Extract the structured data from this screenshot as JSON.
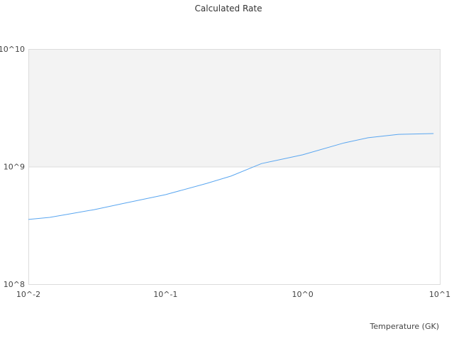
{
  "chart_data": {
    "type": "line",
    "title": "Calculated Rate",
    "xlabel": "Temperature (GK)",
    "ylabel": "",
    "xscale": "log",
    "yscale": "log",
    "xlim": [
      0.01,
      10
    ],
    "ylim": [
      100000000,
      10000000000
    ],
    "x_tick_labels": [
      "10^-2",
      "10^-1",
      "10^0",
      "10^1"
    ],
    "y_tick_labels": [
      "10^8",
      "10^9",
      "10^10"
    ],
    "grid": false,
    "shaded_band": {
      "from": 1000000000,
      "to": 10000000000,
      "color": "#f3f3f3"
    },
    "series": [
      {
        "color": "#5aa6f0",
        "x": [
          0.01,
          0.0143,
          0.02,
          0.03,
          0.05,
          0.1,
          0.2,
          0.3,
          0.5,
          1,
          2,
          3,
          5,
          9
        ],
        "y": [
          355000000,
          370000000,
          396000000,
          430000000,
          488000000,
          577000000,
          720000000,
          830000000,
          1060000000,
          1260000000,
          1590000000,
          1760000000,
          1880000000,
          1910000000
        ]
      }
    ]
  }
}
